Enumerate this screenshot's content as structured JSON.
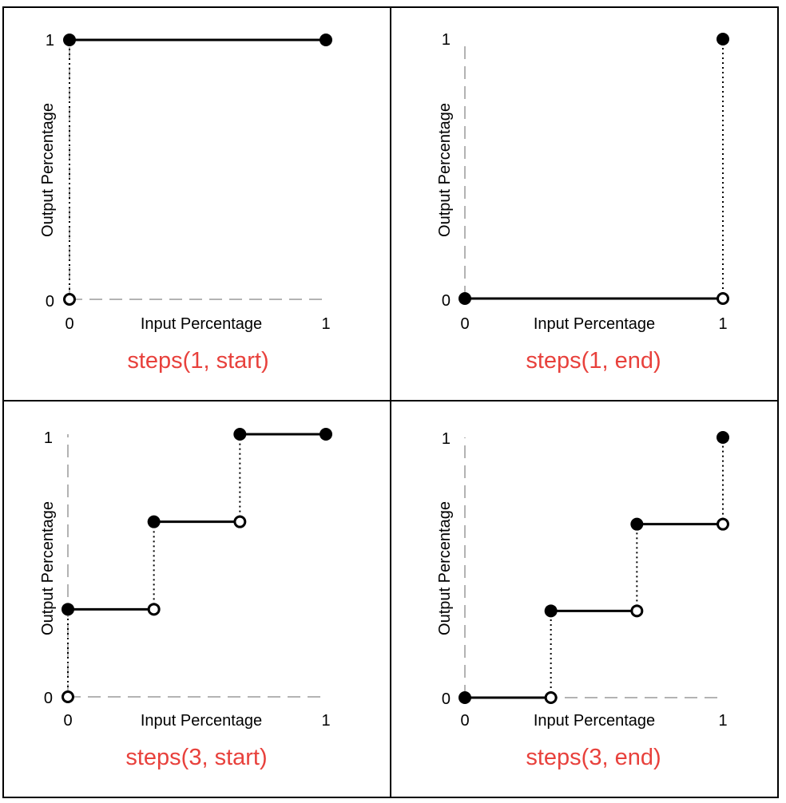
{
  "colors": {
    "title": "#e8413c",
    "step_line": "#000000",
    "axis_dash": "#9a9a9a",
    "frame": "#000000",
    "filled_point": "#000000",
    "open_point_fill": "#ffffff"
  },
  "chart_data": [
    {
      "type": "line",
      "title": "steps(1, start)",
      "xlabel": "Input Percentage",
      "ylabel": "Output Percentage",
      "xlim": [
        0,
        1
      ],
      "ylim": [
        0,
        1
      ],
      "xticks": [
        "0",
        "1"
      ],
      "yticks": [
        "0",
        "1"
      ],
      "segments": [
        [
          0,
          1,
          1
        ]
      ],
      "jumps": [
        [
          0,
          0,
          1
        ]
      ],
      "filled_points": [
        [
          0,
          1
        ],
        [
          1,
          1
        ]
      ],
      "open_points": [
        [
          0,
          0
        ]
      ]
    },
    {
      "type": "line",
      "title": "steps(1, end)",
      "xlabel": "Input Percentage",
      "ylabel": "Output Percentage",
      "xlim": [
        0,
        1
      ],
      "ylim": [
        0,
        1
      ],
      "xticks": [
        "0",
        "1"
      ],
      "yticks": [
        "0",
        "1"
      ],
      "segments": [
        [
          0,
          1,
          0
        ]
      ],
      "jumps": [
        [
          1,
          0,
          1
        ]
      ],
      "filled_points": [
        [
          0,
          0
        ],
        [
          1,
          1
        ]
      ],
      "open_points": [
        [
          1,
          0
        ]
      ]
    },
    {
      "type": "line",
      "title": "steps(3, start)",
      "xlabel": "Input Percentage",
      "ylabel": "Output Percentage",
      "xlim": [
        0,
        1
      ],
      "ylim": [
        0,
        1
      ],
      "xticks": [
        "0",
        "1"
      ],
      "yticks": [
        "0",
        "1"
      ],
      "segments": [
        [
          0,
          0.3333,
          0.3333
        ],
        [
          0.3333,
          0.6667,
          0.6667
        ],
        [
          0.6667,
          1,
          1
        ]
      ],
      "jumps": [
        [
          0,
          0,
          0.3333
        ],
        [
          0.3333,
          0.3333,
          0.6667
        ],
        [
          0.6667,
          0.6667,
          1
        ]
      ],
      "filled_points": [
        [
          0,
          0.3333
        ],
        [
          0.3333,
          0.6667
        ],
        [
          0.6667,
          1
        ],
        [
          1,
          1
        ]
      ],
      "open_points": [
        [
          0,
          0
        ],
        [
          0.3333,
          0.3333
        ],
        [
          0.6667,
          0.6667
        ]
      ]
    },
    {
      "type": "line",
      "title": "steps(3, end)",
      "xlabel": "Input Percentage",
      "ylabel": "Output Percentage",
      "xlim": [
        0,
        1
      ],
      "ylim": [
        0,
        1
      ],
      "xticks": [
        "0",
        "1"
      ],
      "yticks": [
        "0",
        "1"
      ],
      "segments": [
        [
          0,
          0.3333,
          0
        ],
        [
          0.3333,
          0.6667,
          0.3333
        ],
        [
          0.6667,
          1,
          0.6667
        ]
      ],
      "jumps": [
        [
          0.3333,
          0,
          0.3333
        ],
        [
          0.6667,
          0.3333,
          0.6667
        ],
        [
          1,
          0.6667,
          1
        ]
      ],
      "filled_points": [
        [
          0,
          0
        ],
        [
          0.3333,
          0.3333
        ],
        [
          0.6667,
          0.6667
        ],
        [
          1,
          1
        ]
      ],
      "open_points": [
        [
          0.3333,
          0
        ],
        [
          0.6667,
          0.3333
        ],
        [
          1,
          0.6667
        ]
      ]
    }
  ]
}
